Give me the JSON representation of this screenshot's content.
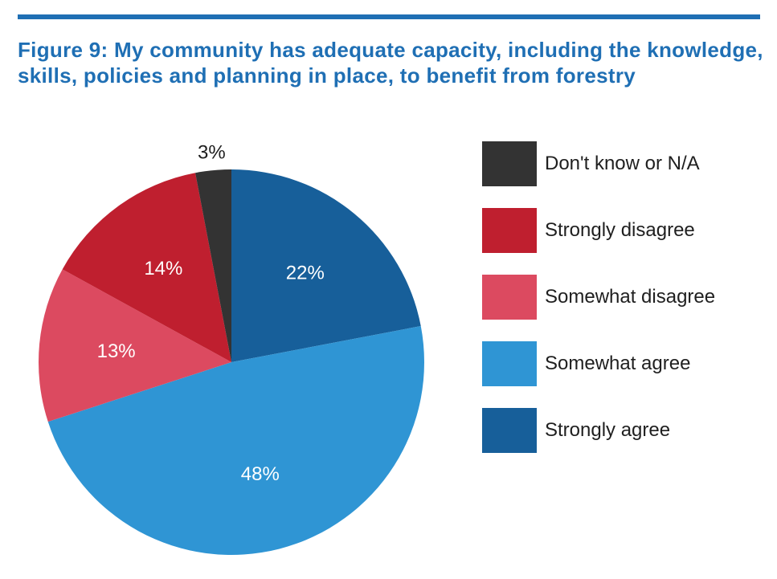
{
  "title": "Figure 9: My community has adequate capacity, including the knowledge, skills, policies and planning in place, to benefit from forestry",
  "colors": {
    "title": "#1f6fb4",
    "rule": "#1f6fb4",
    "strongly_agree": "#175f9a",
    "somewhat_agree": "#2f95d4",
    "somewhat_disagree": "#dc4a60",
    "strongly_disagree": "#bf1f2f",
    "dont_know": "#333333"
  },
  "chart_data": {
    "type": "pie",
    "title": "Figure 9: My community has adequate capacity, including the knowledge, skills, policies and planning in place, to benefit from forestry",
    "slices": [
      {
        "label": "Strongly agree",
        "value": 22,
        "display": "22%",
        "color": "#175f9a"
      },
      {
        "label": "Somewhat agree",
        "value": 48,
        "display": "48%",
        "color": "#2f95d4"
      },
      {
        "label": "Somewhat disagree",
        "value": 13,
        "display": "13%",
        "color": "#dc4a60"
      },
      {
        "label": "Strongly disagree",
        "value": 14,
        "display": "14%",
        "color": "#bf1f2f"
      },
      {
        "label": "Don't know or N/A",
        "value": 3,
        "display": "3%",
        "color": "#333333"
      }
    ],
    "legend": {
      "placement": "right",
      "items": [
        {
          "label": "Don't know or N/A",
          "color": "#333333"
        },
        {
          "label": "Strongly disagree",
          "color": "#bf1f2f"
        },
        {
          "label": "Somewhat disagree",
          "color": "#dc4a60"
        },
        {
          "label": "Somewhat agree",
          "color": "#2f95d4"
        },
        {
          "label": "Strongly agree",
          "color": "#175f9a"
        }
      ]
    }
  }
}
